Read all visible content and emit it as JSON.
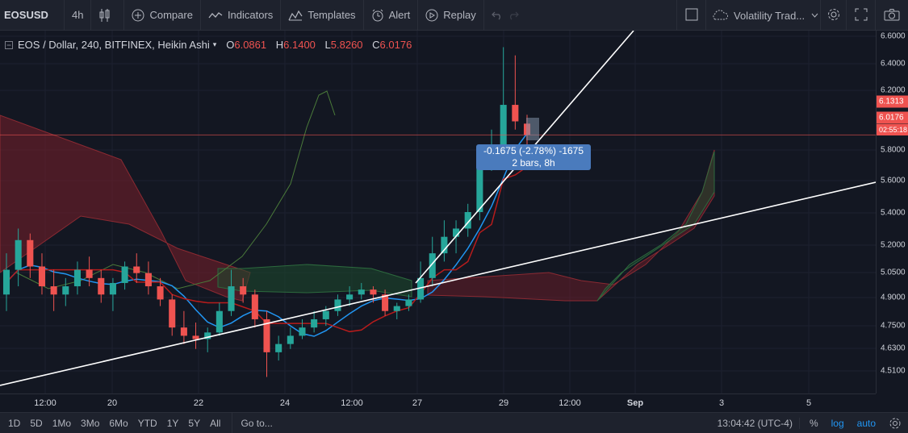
{
  "toolbar": {
    "symbol": "EOSUSD",
    "interval": "4h",
    "compare": "Compare",
    "indicators": "Indicators",
    "templates": "Templates",
    "alert": "Alert",
    "replay": "Replay",
    "layout_name": "Volatility Trad..."
  },
  "legend": {
    "title": "EOS / Dollar, 240, BITFINEX, Heikin Ashi",
    "open_label": "O",
    "open": "6.0861",
    "high_label": "H",
    "high": "6.1400",
    "low_label": "L",
    "low": "5.8260",
    "close_label": "C",
    "close": "6.0176"
  },
  "price_scale": {
    "labels": [
      "6.6000",
      "6.4000",
      "6.2000",
      "5.8000",
      "5.6000",
      "5.4000",
      "5.2000",
      "5.0500",
      "4.9000",
      "4.7500",
      "4.6300",
      "4.5100"
    ],
    "tag_high": "6.1313",
    "tag_last": "6.0176",
    "countdown": "02:55:18"
  },
  "time_scale": {
    "labels": [
      "12:00",
      "20",
      "22",
      "24",
      "12:00",
      "27",
      "29",
      "12:00",
      "Sep",
      "3",
      "5"
    ]
  },
  "measure": {
    "line1": "-0.1675 (-2.78%) -1675",
    "line2": "2 bars, 8h"
  },
  "bottombar": {
    "ranges": [
      "1D",
      "5D",
      "1Mo",
      "3Mo",
      "6Mo",
      "YTD",
      "1Y",
      "5Y",
      "All"
    ],
    "goto": "Go to...",
    "clock": "13:04:42 (UTC-4)",
    "percent": "%",
    "log": "log",
    "auto": "auto"
  },
  "colors": {
    "up": "#26a69a",
    "down": "#ef5350",
    "background": "#131722",
    "cloud_bear": "#7a1f2a",
    "cloud_bull": "#1e4a2e",
    "ma_blue": "#2196f3",
    "measure": "#4a7bbd"
  },
  "chart_data": {
    "type": "candlestick",
    "style": "Heikin Ashi",
    "ylim": [
      4.45,
      6.65
    ],
    "candles": [
      {
        "o": 5.05,
        "h": 5.3,
        "l": 4.95,
        "c": 5.2
      },
      {
        "o": 5.2,
        "h": 5.45,
        "l": 5.1,
        "c": 5.38
      },
      {
        "o": 5.38,
        "h": 5.42,
        "l": 5.15,
        "c": 5.22
      },
      {
        "o": 5.22,
        "h": 5.3,
        "l": 5.05,
        "c": 5.1
      },
      {
        "o": 5.1,
        "h": 5.2,
        "l": 4.95,
        "c": 5.05
      },
      {
        "o": 5.05,
        "h": 5.15,
        "l": 4.98,
        "c": 5.1
      },
      {
        "o": 5.1,
        "h": 5.25,
        "l": 5.05,
        "c": 5.2
      },
      {
        "o": 5.2,
        "h": 5.28,
        "l": 5.1,
        "c": 5.15
      },
      {
        "o": 5.15,
        "h": 5.2,
        "l": 5.0,
        "c": 5.05
      },
      {
        "o": 5.05,
        "h": 5.15,
        "l": 4.95,
        "c": 5.12
      },
      {
        "o": 5.12,
        "h": 5.25,
        "l": 5.08,
        "c": 5.22
      },
      {
        "o": 5.22,
        "h": 5.3,
        "l": 5.12,
        "c": 5.18
      },
      {
        "o": 5.18,
        "h": 5.25,
        "l": 5.05,
        "c": 5.1
      },
      {
        "o": 5.1,
        "h": 5.15,
        "l": 4.98,
        "c": 5.02
      },
      {
        "o": 5.02,
        "h": 5.05,
        "l": 4.8,
        "c": 4.85
      },
      {
        "o": 4.85,
        "h": 4.95,
        "l": 4.75,
        "c": 4.8
      },
      {
        "o": 4.8,
        "h": 4.88,
        "l": 4.72,
        "c": 4.78
      },
      {
        "o": 4.78,
        "h": 4.85,
        "l": 4.7,
        "c": 4.82
      },
      {
        "o": 4.82,
        "h": 5.0,
        "l": 4.8,
        "c": 4.95
      },
      {
        "o": 4.95,
        "h": 5.2,
        "l": 4.92,
        "c": 5.1
      },
      {
        "o": 5.1,
        "h": 5.15,
        "l": 5.0,
        "c": 5.05
      },
      {
        "o": 5.05,
        "h": 5.08,
        "l": 4.85,
        "c": 4.9
      },
      {
        "o": 4.9,
        "h": 4.95,
        "l": 4.55,
        "c": 4.7
      },
      {
        "o": 4.7,
        "h": 4.8,
        "l": 4.65,
        "c": 4.75
      },
      {
        "o": 4.75,
        "h": 4.85,
        "l": 4.72,
        "c": 4.8
      },
      {
        "o": 4.8,
        "h": 4.9,
        "l": 4.78,
        "c": 4.85
      },
      {
        "o": 4.85,
        "h": 4.95,
        "l": 4.82,
        "c": 4.9
      },
      {
        "o": 4.9,
        "h": 4.98,
        "l": 4.86,
        "c": 4.95
      },
      {
        "o": 4.95,
        "h": 5.05,
        "l": 4.92,
        "c": 5.02
      },
      {
        "o": 5.02,
        "h": 5.1,
        "l": 4.98,
        "c": 5.05
      },
      {
        "o": 5.05,
        "h": 5.12,
        "l": 5.02,
        "c": 5.08
      },
      {
        "o": 5.08,
        "h": 5.1,
        "l": 5.0,
        "c": 5.05
      },
      {
        "o": 5.05,
        "h": 5.08,
        "l": 4.92,
        "c": 4.95
      },
      {
        "o": 4.95,
        "h": 5.0,
        "l": 4.9,
        "c": 4.98
      },
      {
        "o": 4.98,
        "h": 5.05,
        "l": 4.95,
        "c": 5.02
      },
      {
        "o": 5.02,
        "h": 5.25,
        "l": 5.0,
        "c": 5.15
      },
      {
        "o": 5.15,
        "h": 5.4,
        "l": 5.1,
        "c": 5.3
      },
      {
        "o": 5.3,
        "h": 5.5,
        "l": 5.25,
        "c": 5.4
      },
      {
        "o": 5.4,
        "h": 5.5,
        "l": 5.3,
        "c": 5.45
      },
      {
        "o": 5.45,
        "h": 5.6,
        "l": 5.4,
        "c": 5.55
      },
      {
        "o": 5.55,
        "h": 5.95,
        "l": 5.5,
        "c": 5.85
      },
      {
        "o": 5.85,
        "h": 6.05,
        "l": 5.8,
        "c": 5.95
      },
      {
        "o": 5.95,
        "h": 6.55,
        "l": 5.9,
        "c": 6.2
      },
      {
        "o": 6.2,
        "h": 6.5,
        "l": 6.05,
        "c": 6.1
      },
      {
        "o": 6.0861,
        "h": 6.14,
        "l": 5.826,
        "c": 6.0176
      }
    ]
  }
}
